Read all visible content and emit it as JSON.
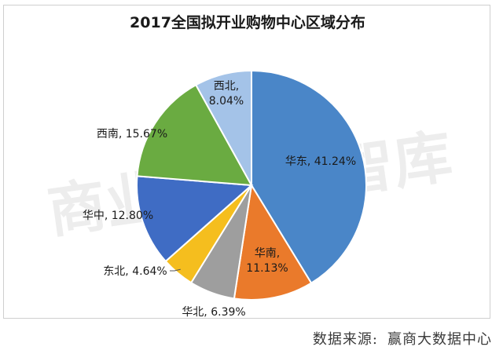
{
  "watermark": "商业地产云智库",
  "source": {
    "label": "数据来源:",
    "value": "赢商大数据中心"
  },
  "chart_data": {
    "type": "pie",
    "title": "2017全国拟开业购物中心区域分布",
    "start_angle_deg": 0,
    "direction": "clockwise",
    "slices": [
      {
        "name": "华东",
        "value": 41.24,
        "label": "华东, 41.24%",
        "color": "#4a86c8"
      },
      {
        "name": "华南",
        "value": 11.13,
        "label": "华南, 11.13%",
        "color": "#ea7a2b"
      },
      {
        "name": "华北",
        "value": 6.39,
        "label": "华北, 6.39%",
        "color": "#9e9e9e"
      },
      {
        "name": "东北",
        "value": 4.64,
        "label": "东北, 4.64%",
        "color": "#f5be1e"
      },
      {
        "name": "华中",
        "value": 12.8,
        "label": "华中, 12.80%",
        "color": "#3f6cc4"
      },
      {
        "name": "西南",
        "value": 15.67,
        "label": "西南, 15.67%",
        "color": "#6aab41"
      },
      {
        "name": "西北",
        "value": 8.04,
        "label": "西北, 8.04%",
        "color": "#a4c3e8"
      }
    ]
  }
}
